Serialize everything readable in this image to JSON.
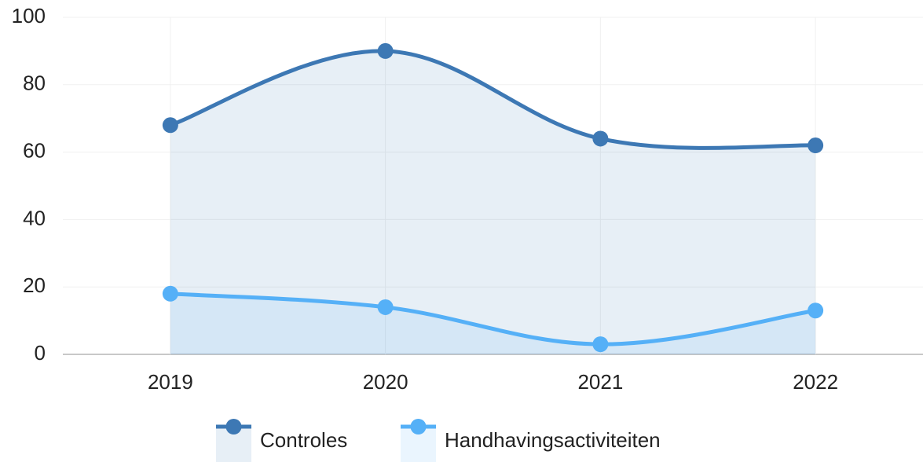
{
  "chart_data": {
    "type": "area",
    "categories": [
      "2019",
      "2020",
      "2021",
      "2022"
    ],
    "series": [
      {
        "name": "Controles",
        "color": "#3d78b4",
        "values": [
          68,
          90,
          64,
          62
        ]
      },
      {
        "name": "Handhavingsactiviteiten",
        "color": "#55b0f7",
        "values": [
          18,
          14,
          3,
          13
        ]
      }
    ],
    "ylim": [
      0,
      100
    ],
    "yticks": [
      0,
      20,
      40,
      60,
      80,
      100
    ],
    "grid": true,
    "legend": "bottom"
  }
}
